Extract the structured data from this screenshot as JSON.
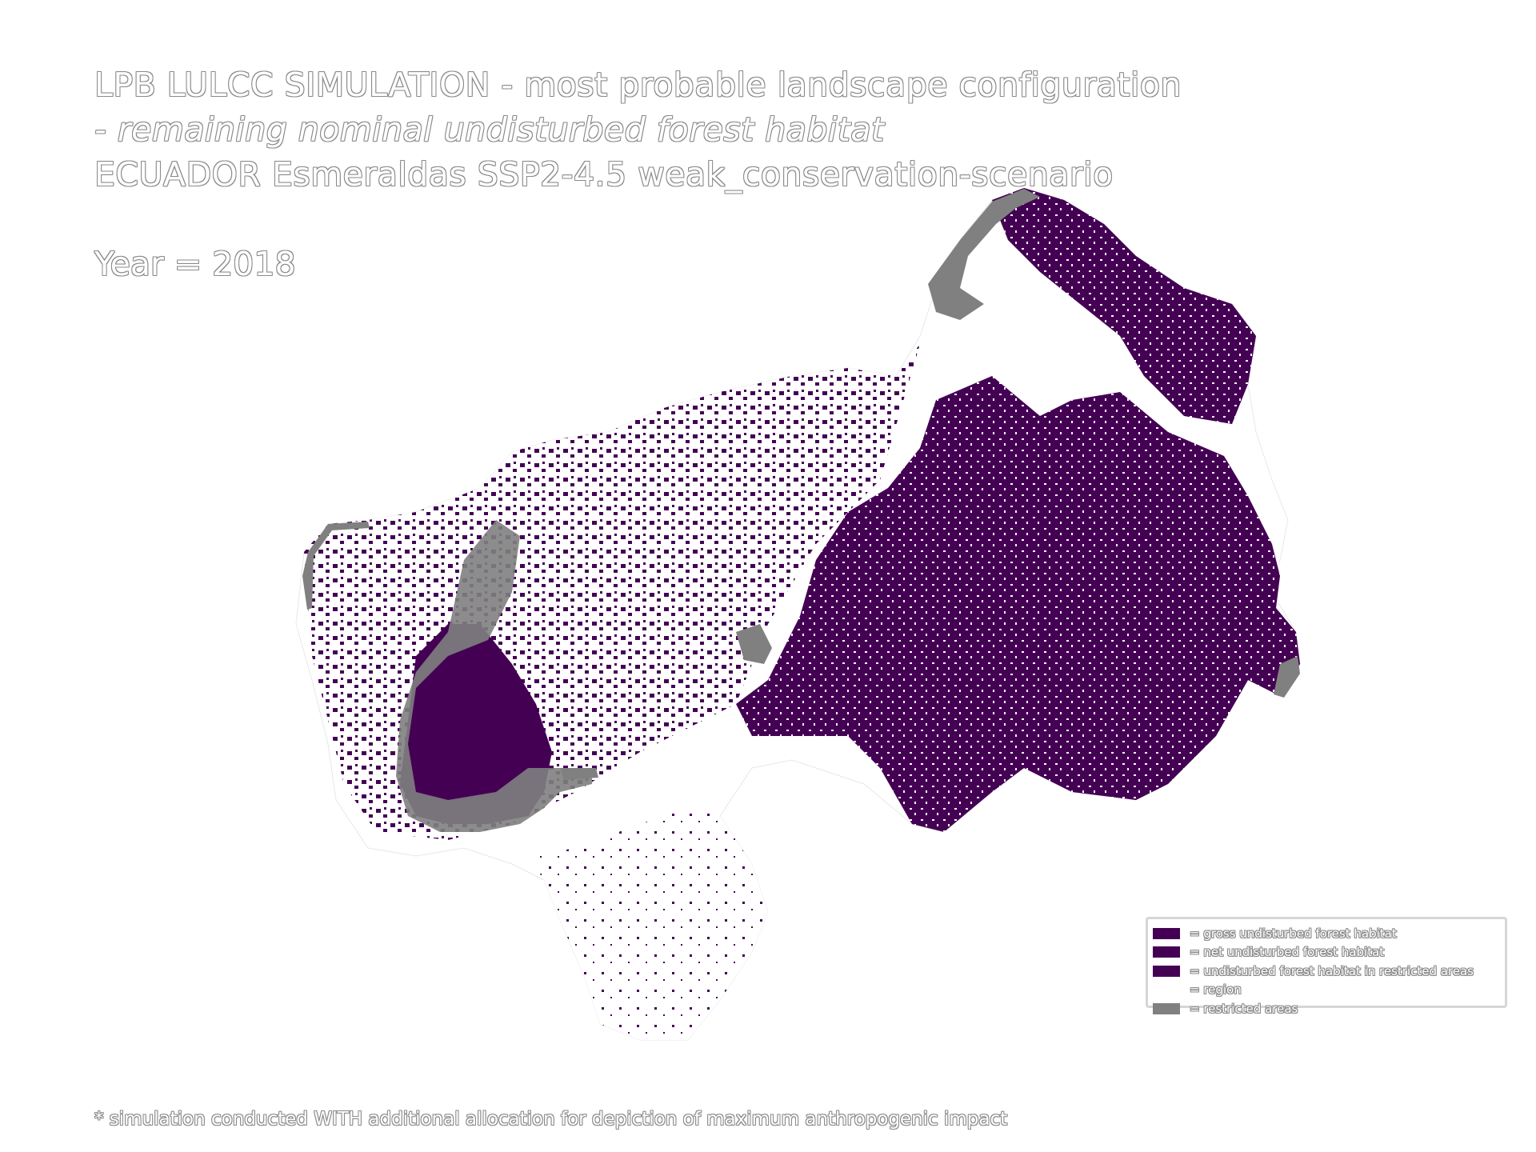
{
  "title": {
    "line1": "LPB LULCC SIMULATION - most probable landscape configuration",
    "line2": " - remaining nominal undisturbed forest habitat",
    "line3": "ECUADOR Esmeraldas SSP2-4.5 weak_conservation-scenario"
  },
  "year_label": "Year = 2018",
  "colors": {
    "forest": "#440154",
    "restricted": "#808080",
    "region": "#ffffff",
    "text_outline": "#8a8a8a"
  },
  "legend": {
    "items": [
      {
        "label": "= gross undisturbed forest habitat",
        "color": "#440154"
      },
      {
        "label": "= net undisturbed forest habitat",
        "color": "#440154"
      },
      {
        "label": "= undisturbed forest habitat in restricted areas",
        "color": "#440154"
      },
      {
        "label": "= region",
        "color": "#ffffff"
      },
      {
        "label": "= restricted areas",
        "color": "#808080"
      }
    ]
  },
  "footnote": "* simulation conducted WITH additional allocation for depiction of maximum anthropogenic impact"
}
